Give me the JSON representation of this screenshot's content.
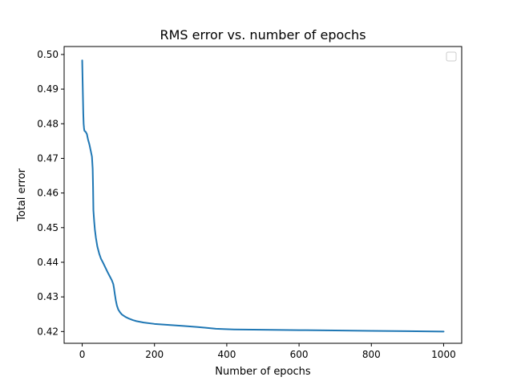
{
  "chart_data": {
    "type": "line",
    "title": "RMS error vs. number of epochs",
    "xlabel": "Number of epochs",
    "ylabel": "Total error",
    "xlim": [
      -50,
      1050
    ],
    "ylim": [
      0.4166,
      0.5023
    ],
    "xticks": [
      0,
      200,
      400,
      600,
      800,
      1000
    ],
    "yticks": [
      0.42,
      0.43,
      0.44,
      0.45,
      0.46,
      0.47,
      0.48,
      0.49,
      0.5
    ],
    "xtick_labels": [
      "0",
      "200",
      "400",
      "600",
      "800",
      "1000"
    ],
    "ytick_labels": [
      "0.42",
      "0.43",
      "0.44",
      "0.45",
      "0.46",
      "0.47",
      "0.48",
      "0.49",
      "0.50"
    ],
    "grid": false,
    "legend": {
      "placement": "top-right",
      "entries": []
    },
    "series": [
      {
        "color": "#1f77b4",
        "x": [
          0,
          1,
          2,
          3,
          4,
          5,
          6,
          8,
          10,
          13,
          16,
          20,
          24,
          27,
          29,
          30,
          31,
          33,
          35,
          38,
          42,
          47,
          52,
          58,
          64,
          70,
          76,
          82,
          86,
          88,
          90,
          93,
          96,
          100,
          105,
          110,
          120,
          130,
          140,
          150,
          170,
          200,
          240,
          280,
          320,
          350,
          370,
          390,
          420,
          500,
          600,
          700,
          800,
          900,
          1000
        ],
        "y": [
          0.4983,
          0.493,
          0.488,
          0.483,
          0.48,
          0.4788,
          0.478,
          0.4778,
          0.4776,
          0.477,
          0.4755,
          0.474,
          0.472,
          0.4705,
          0.467,
          0.462,
          0.455,
          0.452,
          0.4495,
          0.447,
          0.4445,
          0.4425,
          0.441,
          0.4398,
          0.4385,
          0.4372,
          0.436,
          0.4348,
          0.4337,
          0.4325,
          0.431,
          0.429,
          0.4275,
          0.4263,
          0.4255,
          0.4249,
          0.4242,
          0.4237,
          0.4233,
          0.423,
          0.4226,
          0.4222,
          0.4219,
          0.4216,
          0.4213,
          0.421,
          0.4208,
          0.4207,
          0.4206,
          0.4205,
          0.4204,
          0.4203,
          0.4202,
          0.4201,
          0.42
        ]
      }
    ]
  }
}
